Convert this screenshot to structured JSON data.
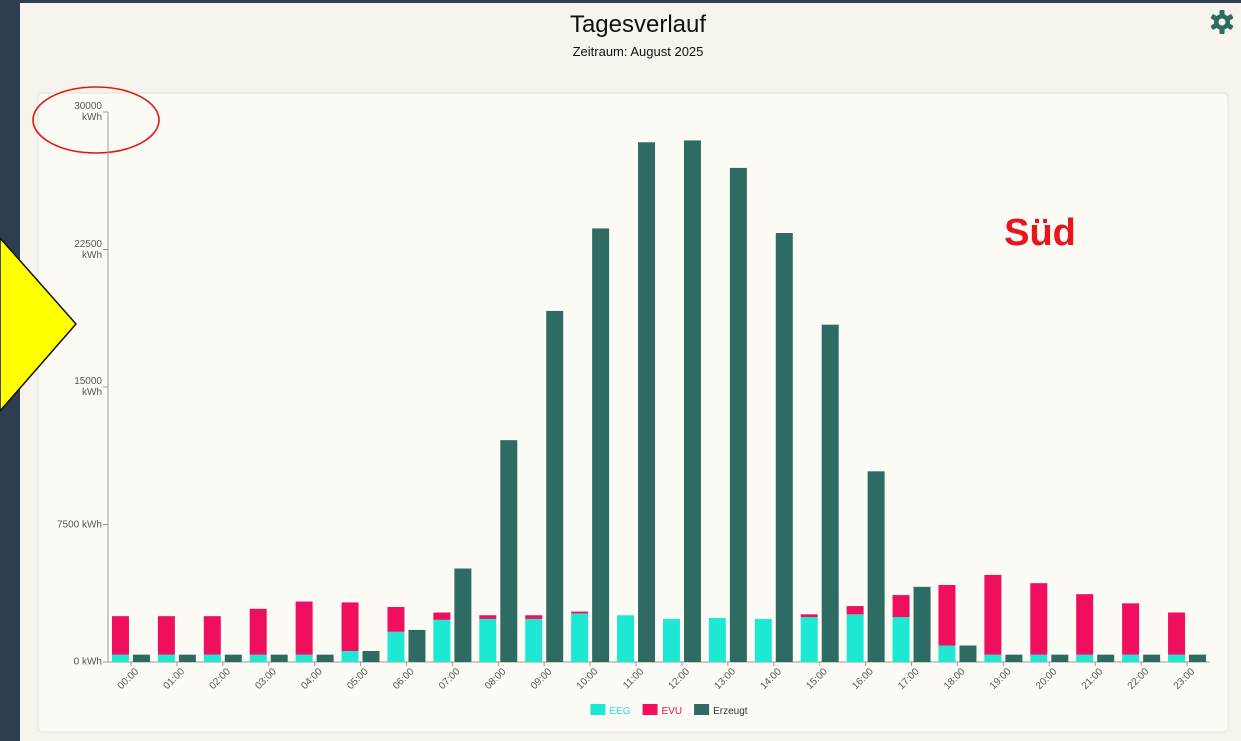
{
  "chart_data": {
    "type": "bar",
    "title": "Tagesverlauf",
    "subtitle": "Zeitraum: August 2025",
    "annotation": "Süd",
    "categories": [
      "00:00",
      "01:00",
      "02:00",
      "03:00",
      "04:00",
      "05:00",
      "06:00",
      "07:00",
      "08:00",
      "09:00",
      "10:00",
      "11:00",
      "12:00",
      "13:00",
      "14:00",
      "15:00",
      "16:00",
      "17:00",
      "18:00",
      "19:00",
      "20:00",
      "21:00",
      "22:00",
      "23:00"
    ],
    "series": [
      {
        "name": "EEG",
        "color": "#1de9d2",
        "stacked": true,
        "values": [
          400,
          400,
          400,
          400,
          400,
          600,
          1650,
          2300,
          2350,
          2350,
          2650,
          2550,
          2350,
          2400,
          2350,
          2450,
          2600,
          2450,
          900,
          400,
          400,
          400,
          400,
          400
        ]
      },
      {
        "name": "EVU",
        "color": "#f00f5f",
        "stacked": true,
        "values": [
          2100,
          2100,
          2100,
          2500,
          2900,
          2650,
          1350,
          400,
          200,
          200,
          100,
          0,
          0,
          0,
          0,
          150,
          450,
          1200,
          3300,
          4350,
          3900,
          3300,
          2800,
          2300
        ]
      },
      {
        "name": "Erzeugt",
        "color": "#2e6b62",
        "stacked": false,
        "values": [
          400,
          400,
          400,
          400,
          400,
          600,
          1750,
          5100,
          12100,
          19150,
          23650,
          28350,
          28450,
          26950,
          23400,
          18400,
          10400,
          4100,
          900,
          400,
          400,
          400,
          400,
          400
        ]
      }
    ],
    "ylim": [
      0,
      30000
    ],
    "yticks": [
      {
        "value": 0,
        "label": "0 kWh"
      },
      {
        "value": 7500,
        "label": "7500 kWh"
      },
      {
        "value": 15000,
        "label": "15000 kWh"
      },
      {
        "value": 22500,
        "label": "22500 kWh"
      },
      {
        "value": 30000,
        "label": "30000 kWh"
      }
    ],
    "legend": "bottom"
  }
}
